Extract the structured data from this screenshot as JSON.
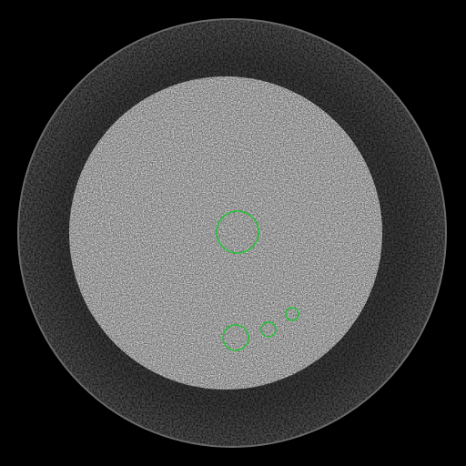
{
  "viewer": {
    "background_color": "#000000",
    "roi_color": "#22c435"
  },
  "phantom": {
    "outer_ring": {
      "gray_mean": 58,
      "noise_amplitude": 34,
      "description_shape": "outer-ring"
    },
    "inner_disk": {
      "gray_mean": 170,
      "noise_amplitude": 60,
      "description_shape": "inner-disk"
    }
  },
  "rois": [
    {
      "id": "roi-center"
    },
    {
      "id": "roi-lower-large"
    },
    {
      "id": "roi-lower-medium"
    },
    {
      "id": "roi-lower-small"
    }
  ]
}
